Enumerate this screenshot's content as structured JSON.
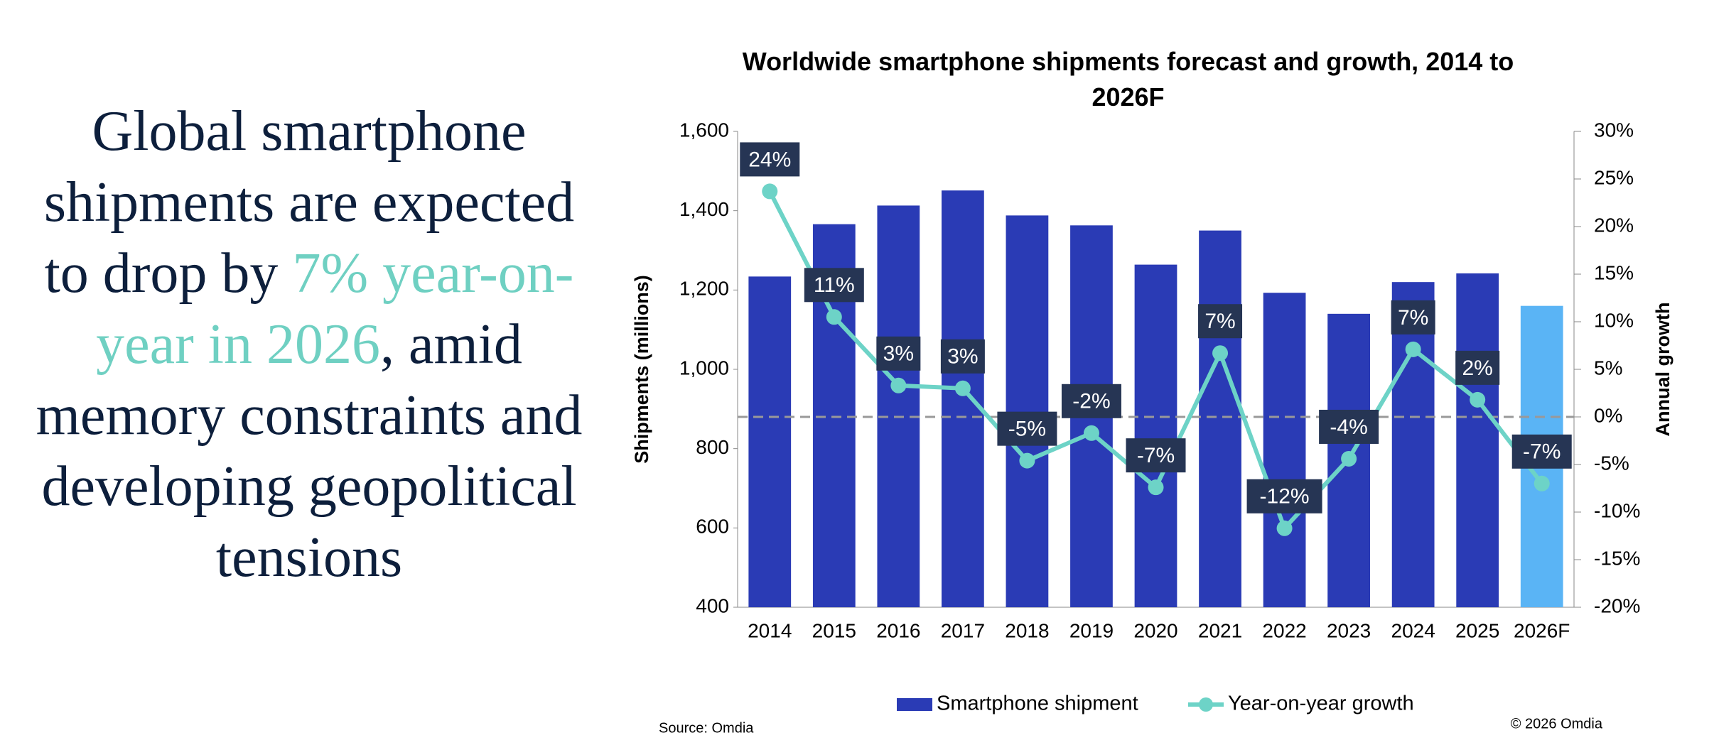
{
  "headline": {
    "before": "Global smartphone shipments are expected to drop by",
    "highlight": "7% year-on-year in 2026",
    "after": ", amid memory constraints and developing geopolitical tensions"
  },
  "chart_data": {
    "type": "bar_line",
    "title": "Worldwide smartphone shipments forecast and growth, 2014 to 2026F",
    "y_label": "Shipments (millions)",
    "y2_label": "Annual growth",
    "categories": [
      "2014",
      "2015",
      "2016",
      "2017",
      "2018",
      "2019",
      "2020",
      "2021",
      "2022",
      "2023",
      "2024",
      "2025",
      "2026F"
    ],
    "series": [
      {
        "name": "Smartphone shipment",
        "color": "#2a3bb5",
        "colors": [
          "#2a3bb5",
          "#2a3bb5",
          "#2a3bb5",
          "#2a3bb5",
          "#2a3bb5",
          "#2a3bb5",
          "#2a3bb5",
          "#2a3bb5",
          "#2a3bb5",
          "#2a3bb5",
          "#2a3bb5",
          "#2a3bb5",
          "#5ab4f5"
        ],
        "values": [
          1234,
          1366,
          1413,
          1451,
          1388,
          1363,
          1264,
          1350,
          1193,
          1140,
          1220,
          1242,
          1160
        ]
      },
      {
        "name": "Year-on-year growth",
        "color": "#6dd3c7",
        "axis": "y2",
        "values": [
          23.7,
          10.5,
          3.3,
          3.0,
          -4.6,
          -1.7,
          -7.4,
          6.7,
          -11.7,
          -4.4,
          7.1,
          1.8,
          -7.0
        ],
        "value_labels": [
          "24%",
          "11%",
          "3%",
          "3%",
          "-5%",
          "-2%",
          "-7%",
          "7%",
          "-12%",
          "-4%",
          "7%",
          "2%",
          "-7%"
        ]
      }
    ],
    "ylim": [
      400,
      1600
    ],
    "yticks": [
      400,
      600,
      800,
      {
        "value": 1000,
        "label": "1,000"
      },
      {
        "value": 1200,
        "label": "1,200"
      },
      {
        "value": 1400,
        "label": "1,400"
      },
      {
        "value": 1600,
        "label": "1,600"
      }
    ],
    "y2lim": [
      -20,
      30
    ],
    "y2ticks": [
      {
        "value": -20,
        "label": "-20%"
      },
      {
        "value": -15,
        "label": "-15%"
      },
      {
        "value": -10,
        "label": "-10%"
      },
      {
        "value": -5,
        "label": "-5%"
      },
      {
        "value": 0,
        "label": "0%"
      },
      {
        "value": 5,
        "label": "5%"
      },
      {
        "value": 10,
        "label": "10%"
      },
      {
        "value": 15,
        "label": "15%"
      },
      {
        "value": 20,
        "label": "20%"
      },
      {
        "value": 25,
        "label": "25%"
      },
      {
        "value": 30,
        "label": "30%"
      }
    ],
    "source": "Source: Omdia",
    "copyright": "© 2026 Omdia"
  }
}
